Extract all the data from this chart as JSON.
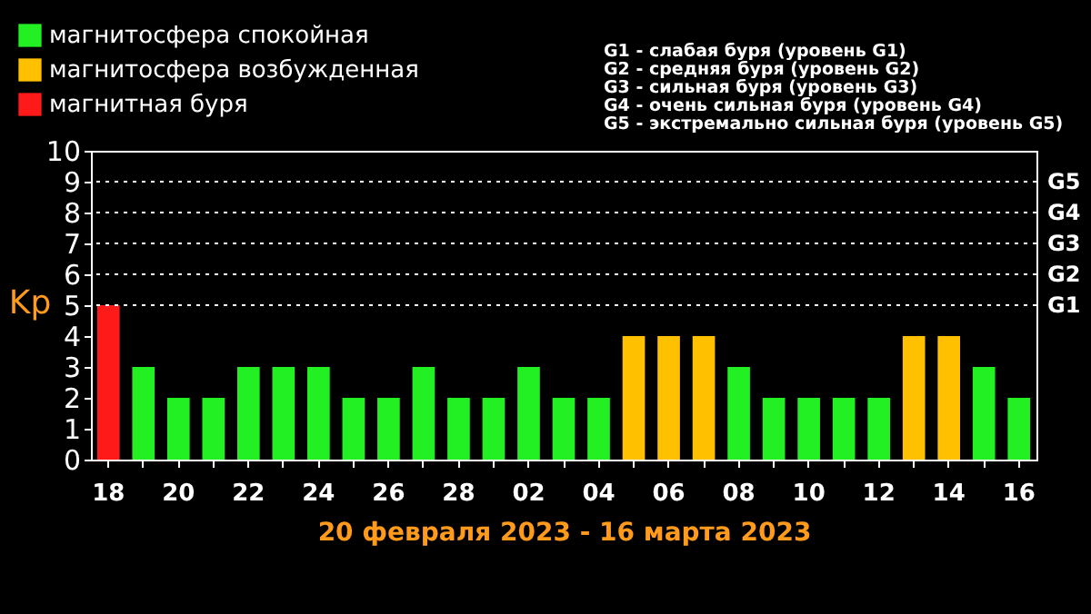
{
  "chart_data": {
    "type": "bar",
    "xlabel": "20 февраля 2023 - 16 марта 2023",
    "ylabel": "Kp",
    "categories": [
      "18",
      null,
      "20",
      null,
      "22",
      null,
      "24",
      null,
      "26",
      null,
      "28",
      null,
      "02",
      null,
      "04",
      null,
      "06",
      null,
      "08",
      null,
      "10",
      null,
      "12",
      null,
      "14",
      null,
      "16"
    ],
    "series": [
      {
        "name": "магнитосфера спокойная",
        "color": "#22f022",
        "values": [
          null,
          3,
          2,
          2,
          3,
          3,
          3,
          2,
          2,
          3,
          2,
          2,
          3,
          2,
          2,
          null,
          null,
          null,
          3,
          2,
          2,
          2,
          2,
          null,
          null,
          3,
          2
        ]
      },
      {
        "name": "магнитосфера возбужденная",
        "color": "#ffc000",
        "values": [
          null,
          null,
          null,
          null,
          null,
          null,
          null,
          null,
          null,
          null,
          null,
          null,
          null,
          null,
          null,
          4,
          4,
          4,
          null,
          null,
          null,
          null,
          null,
          4,
          4,
          null,
          null
        ]
      },
      {
        "name": "магнитная буря",
        "color": "#ff1a1a",
        "values": [
          5,
          null,
          null,
          null,
          null,
          null,
          null,
          null,
          null,
          null,
          null,
          null,
          null,
          null,
          null,
          null,
          null,
          null,
          null,
          null,
          null,
          null,
          null,
          null,
          null,
          null,
          null
        ]
      }
    ],
    "ylim": [
      0,
      10
    ],
    "yticks": [
      0,
      1,
      2,
      3,
      4,
      5,
      6,
      7,
      8,
      9,
      10
    ],
    "ref_lines": [
      {
        "axis": "y",
        "value": 5,
        "label": "G1",
        "line_style": "dotted"
      },
      {
        "axis": "y",
        "value": 6,
        "label": "G2",
        "line_style": "dotted"
      },
      {
        "axis": "y",
        "value": 7,
        "label": "G3",
        "line_style": "dotted"
      },
      {
        "axis": "y",
        "value": 8,
        "label": "G4",
        "line_style": "dotted"
      },
      {
        "axis": "y",
        "value": 9,
        "label": "G5",
        "line_style": "dotted"
      }
    ],
    "legend": "top left",
    "annotations": [
      "G1 - слабая буря (уровень G1)",
      "G2 - средняя буря (уровень G2)",
      "G3 - сильная буря (уровень G3)",
      "G4 - очень сильная буря (уровень G4)",
      "G5 - экстремально сильная буря (уровень G5)"
    ]
  }
}
